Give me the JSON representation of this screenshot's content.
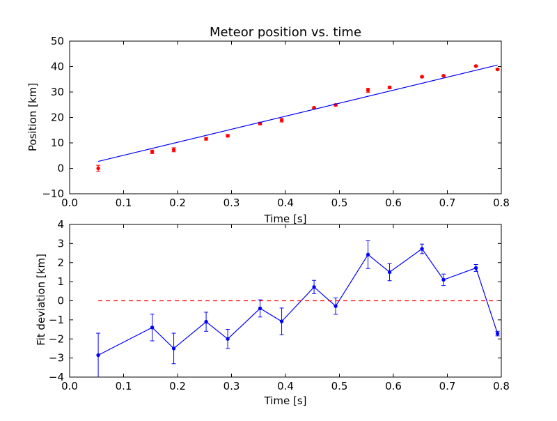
{
  "colors": {
    "data": "#ff0000",
    "fit": "#0000ff",
    "reference": "#ff0000",
    "axes": "#000000"
  },
  "chart_data": [
    {
      "type": "scatter",
      "title": "Meteor position vs. time",
      "xlabel": "Time [s]",
      "ylabel": "Position [km]",
      "xlim": [
        0.0,
        0.8
      ],
      "ylim": [
        -10,
        50
      ],
      "xticks": [
        "0.0",
        "0.1",
        "0.2",
        "0.3",
        "0.4",
        "0.5",
        "0.6",
        "0.7",
        "0.8"
      ],
      "yticks": [
        "−10",
        "0",
        "10",
        "20",
        "30",
        "40",
        "50"
      ],
      "grid": false,
      "series": [
        {
          "kind": "errorbar-points",
          "color": "#ff0000",
          "x": [
            0.053,
            0.153,
            0.193,
            0.253,
            0.293,
            0.353,
            0.393,
            0.453,
            0.493,
            0.553,
            0.593,
            0.653,
            0.693,
            0.753,
            0.793
          ],
          "y": [
            0.0,
            6.5,
            7.3,
            11.6,
            12.8,
            17.6,
            18.9,
            23.8,
            24.9,
            30.7,
            31.8,
            36.0,
            36.4,
            40.2,
            38.9
          ],
          "yerr": [
            1.2,
            0.7,
            0.8,
            0.5,
            0.5,
            0.5,
            0.7,
            0.3,
            0.4,
            0.8,
            0.5,
            0.3,
            0.3,
            0.3,
            0.3
          ]
        },
        {
          "kind": "line",
          "color": "#0000ff",
          "x": [
            0.053,
            0.793
          ],
          "y": [
            2.7,
            40.6
          ]
        }
      ]
    },
    {
      "type": "line",
      "title": "",
      "xlabel": "Time [s]",
      "ylabel": "Fit deviation [km]",
      "xlim": [
        0.0,
        0.8
      ],
      "ylim": [
        -4,
        4
      ],
      "xticks": [
        "0.0",
        "0.1",
        "0.2",
        "0.3",
        "0.4",
        "0.5",
        "0.6",
        "0.7",
        "0.8"
      ],
      "yticks": [
        "−4",
        "−3",
        "−2",
        "−1",
        "0",
        "1",
        "2",
        "3",
        "4"
      ],
      "grid": false,
      "series": [
        {
          "kind": "errorbar-line",
          "color": "#0000ff",
          "x": [
            0.053,
            0.153,
            0.193,
            0.253,
            0.293,
            0.353,
            0.393,
            0.453,
            0.493,
            0.553,
            0.593,
            0.653,
            0.693,
            0.753,
            0.793
          ],
          "y": [
            -2.85,
            -1.4,
            -2.5,
            -1.1,
            -2.0,
            -0.4,
            -1.08,
            0.72,
            -0.28,
            2.42,
            1.5,
            2.72,
            1.1,
            1.72,
            -1.72
          ],
          "yerr": [
            1.15,
            0.7,
            0.8,
            0.5,
            0.5,
            0.45,
            0.7,
            0.35,
            0.43,
            0.73,
            0.45,
            0.25,
            0.3,
            0.18,
            0.12
          ]
        },
        {
          "kind": "reference-line",
          "color": "#ff0000",
          "style": "dashed",
          "x": [
            0.053,
            0.793
          ],
          "y": [
            0,
            0
          ]
        }
      ]
    }
  ]
}
